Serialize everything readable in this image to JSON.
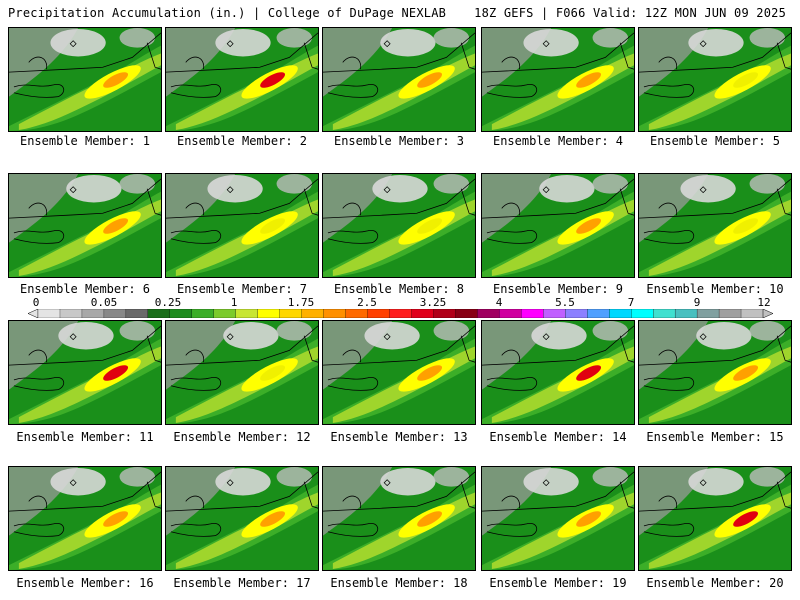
{
  "header": {
    "title": "Precipitation Accumulation (in.) | College of DuPage NEXLAB",
    "valid": "18Z GEFS | F066 Valid: 12Z MON JUN 09 2025"
  },
  "members": [
    {
      "label": "Ensemble Member: 1",
      "peak": "orange"
    },
    {
      "label": "Ensemble Member: 2",
      "peak": "red"
    },
    {
      "label": "Ensemble Member: 3",
      "peak": "orange"
    },
    {
      "label": "Ensemble Member: 4",
      "peak": "orange"
    },
    {
      "label": "Ensemble Member: 5",
      "peak": "yellow"
    },
    {
      "label": "Ensemble Member: 6",
      "peak": "orange"
    },
    {
      "label": "Ensemble Member: 7",
      "peak": "yellow"
    },
    {
      "label": "Ensemble Member: 8",
      "peak": "yellow"
    },
    {
      "label": "Ensemble Member: 9",
      "peak": "orange"
    },
    {
      "label": "Ensemble Member: 10",
      "peak": "yellow"
    },
    {
      "label": "Ensemble Member: 11",
      "peak": "red"
    },
    {
      "label": "Ensemble Member: 12",
      "peak": "yellow"
    },
    {
      "label": "Ensemble Member: 13",
      "peak": "orange"
    },
    {
      "label": "Ensemble Member: 14",
      "peak": "red"
    },
    {
      "label": "Ensemble Member: 15",
      "peak": "orange"
    },
    {
      "label": "Ensemble Member: 16",
      "peak": "orange"
    },
    {
      "label": "Ensemble Member: 17",
      "peak": "orange"
    },
    {
      "label": "Ensemble Member: 18",
      "peak": "orange"
    },
    {
      "label": "Ensemble Member: 19",
      "peak": "orange"
    },
    {
      "label": "Ensemble Member: 20",
      "peak": "red"
    }
  ],
  "colorbar": {
    "labels": [
      "0",
      "0.05",
      "0.25",
      "1",
      "1.75",
      "2.5",
      "3.25",
      "4",
      "5.5",
      "7",
      "9",
      "12"
    ],
    "colors": [
      "#e4e4e4",
      "#c8c8c8",
      "#a8a8a8",
      "#888888",
      "#6a6a6a",
      "#1a6e1a",
      "#1e8c1e",
      "#3cae28",
      "#7ccb2c",
      "#c8e632",
      "#ffff00",
      "#ffd700",
      "#ffb000",
      "#ff9000",
      "#ff6a00",
      "#ff4000",
      "#ff1e1e",
      "#e0001a",
      "#b00018",
      "#880014",
      "#a00060",
      "#d000a0",
      "#ff00ff",
      "#c060ff",
      "#8c80ff",
      "#50a0ff",
      "#00d8ff",
      "#00ffff",
      "#40e0d0",
      "#48c0c0",
      "#80a0a0",
      "#a0a0a0",
      "#c0c0c0"
    ]
  }
}
